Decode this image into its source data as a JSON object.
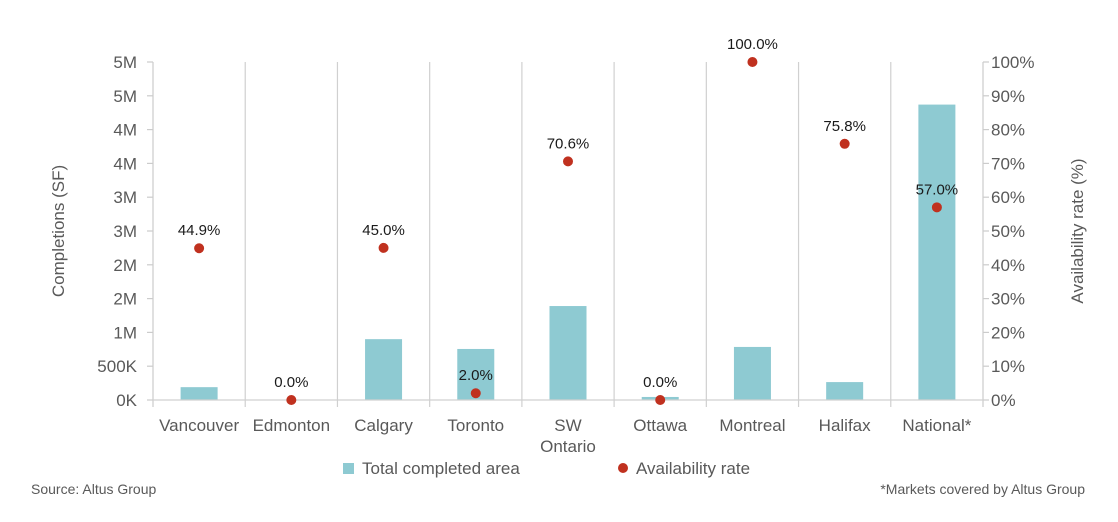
{
  "chart_data": {
    "type": "bar",
    "title": "",
    "categories": [
      "Vancouver",
      "Edmonton",
      "Calgary",
      "Toronto",
      "SW Ontario",
      "Ottawa",
      "Montreal",
      "Halifax",
      "National*"
    ],
    "category_lines": [
      [
        "Vancouver"
      ],
      [
        "Edmonton"
      ],
      [
        "Calgary"
      ],
      [
        "Toronto"
      ],
      [
        "SW",
        "Ontario"
      ],
      [
        "Ottawa"
      ],
      [
        "Montreal"
      ],
      [
        "Halifax"
      ],
      [
        "National*"
      ]
    ],
    "series": [
      {
        "name": "Total completed area",
        "type": "bar",
        "axis": "left",
        "color": "#8ecad2",
        "values": [
          190000,
          0,
          900000,
          755000,
          1390000,
          45000,
          785000,
          265000,
          4370000
        ]
      },
      {
        "name": "Availability rate",
        "type": "scatter",
        "axis": "right",
        "color": "#c0311f",
        "values": [
          44.9,
          0.0,
          45.0,
          2.0,
          70.6,
          0.0,
          100.0,
          75.8,
          57.0
        ],
        "labels": [
          "44.9%",
          "0.0%",
          "45.0%",
          "2.0%",
          "70.6%",
          "0.0%",
          "100.0%",
          "75.8%",
          "57.0%"
        ]
      }
    ],
    "ylabel": "Completions (SF)",
    "ylim": [
      0,
      5000000
    ],
    "yticks": [
      0,
      500000,
      1000000,
      1500000,
      2000000,
      2500000,
      3000000,
      3500000,
      4000000,
      4500000,
      5000000
    ],
    "ytick_labels": [
      "0K",
      "500K",
      "1M",
      "2M",
      "2M",
      "3M",
      "3M",
      "4M",
      "4M",
      "5M",
      "5M"
    ],
    "y2label": "Availability rate (%)",
    "y2lim": [
      0,
      100
    ],
    "y2ticks": [
      0,
      10,
      20,
      30,
      40,
      50,
      60,
      70,
      80,
      90,
      100
    ],
    "y2tick_labels": [
      "0%",
      "10%",
      "20%",
      "30%",
      "40%",
      "50%",
      "60%",
      "70%",
      "80%",
      "90%",
      "100%"
    ],
    "grid": "vertical category separators",
    "legend": {
      "position": "bottom",
      "entries": [
        "Total completed area",
        "Availability rate"
      ]
    }
  },
  "footer": {
    "source": "Source: Altus Group",
    "note": "*Markets covered by Altus Group"
  }
}
